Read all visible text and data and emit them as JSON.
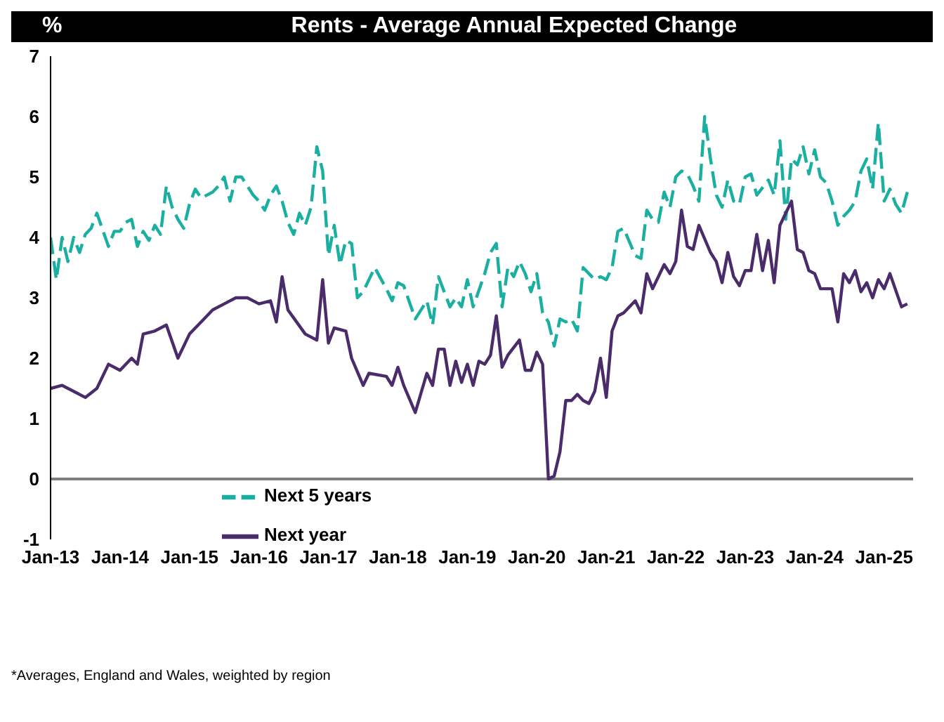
{
  "chart_data": {
    "type": "line",
    "title": "Rents  -  Average Annual Expected Change",
    "ylabel": "%",
    "annotations": [
      "*Averages, England and Wales, weighted by region"
    ],
    "xlim": [
      "2013-01",
      "2025-06"
    ],
    "xticks": [
      {
        "value": "2013-01",
        "label": "Jan-13"
      },
      {
        "value": "2014-01",
        "label": "Jan-14"
      },
      {
        "value": "2015-01",
        "label": "Jan-15"
      },
      {
        "value": "2016-01",
        "label": "Jan-16"
      },
      {
        "value": "2017-01",
        "label": "Jan-17"
      },
      {
        "value": "2018-01",
        "label": "Jan-18"
      },
      {
        "value": "2019-01",
        "label": "Jan-19"
      },
      {
        "value": "2020-01",
        "label": "Jan-20"
      },
      {
        "value": "2021-01",
        "label": "Jan-21"
      },
      {
        "value": "2022-01",
        "label": "Jan-22"
      },
      {
        "value": "2023-01",
        "label": "Jan-23"
      },
      {
        "value": "2024-01",
        "label": "Jan-24"
      },
      {
        "value": "2025-01",
        "label": "Jan-25"
      }
    ],
    "ylim": [
      -1,
      7
    ],
    "yticks": [
      -1,
      0,
      1,
      2,
      3,
      4,
      5,
      6,
      7
    ],
    "ref_lines": [
      {
        "axis": "y",
        "value": 0,
        "color": "#7f7f7f"
      }
    ],
    "grid": false,
    "legend": "bottom left",
    "marker": "none",
    "series": [
      {
        "name": "Next 5 years",
        "color": "#1aafa0",
        "line_style": "dashed",
        "x": [
          "2013-01",
          "2013-02",
          "2013-03",
          "2013-04",
          "2013-05",
          "2013-06",
          "2013-07",
          "2013-08",
          "2013-09",
          "2013-11",
          "2013-12",
          "2014-01",
          "2014-02",
          "2014-03",
          "2014-04",
          "2014-05",
          "2014-06",
          "2014-07",
          "2014-08",
          "2014-09",
          "2014-10",
          "2014-11",
          "2014-12",
          "2015-01",
          "2015-02",
          "2015-03",
          "2015-05",
          "2015-06",
          "2015-07",
          "2015-08",
          "2015-09",
          "2015-10",
          "2015-12",
          "2016-01",
          "2016-02",
          "2016-03",
          "2016-04",
          "2016-05",
          "2016-06",
          "2016-07",
          "2016-08",
          "2016-09",
          "2016-10",
          "2016-11",
          "2016-12",
          "2017-01",
          "2017-02",
          "2017-03",
          "2017-04",
          "2017-05",
          "2017-06",
          "2017-07",
          "2017-09",
          "2017-11",
          "2017-12",
          "2018-01",
          "2018-02",
          "2018-04",
          "2018-06",
          "2018-07",
          "2018-08",
          "2018-09",
          "2018-10",
          "2018-11",
          "2018-12",
          "2019-01",
          "2019-02",
          "2019-04",
          "2019-05",
          "2019-06",
          "2019-07",
          "2019-08",
          "2019-09",
          "2019-10",
          "2019-11",
          "2019-12",
          "2020-01",
          "2020-02",
          "2020-03",
          "2020-04",
          "2020-05",
          "2020-06",
          "2020-07",
          "2020-08",
          "2020-09",
          "2020-11",
          "2020-12",
          "2021-01",
          "2021-02",
          "2021-03",
          "2021-04",
          "2021-06",
          "2021-07",
          "2021-08",
          "2021-09",
          "2021-10",
          "2021-11",
          "2021-12",
          "2022-01",
          "2022-02",
          "2022-03",
          "2022-04",
          "2022-05",
          "2022-06",
          "2022-07",
          "2022-08",
          "2022-09",
          "2022-10",
          "2022-11",
          "2022-12",
          "2023-01",
          "2023-02",
          "2023-03",
          "2023-05",
          "2023-06",
          "2023-07",
          "2023-08",
          "2023-09",
          "2023-10",
          "2023-11",
          "2023-12",
          "2024-01",
          "2024-02",
          "2024-03",
          "2024-04",
          "2024-05",
          "2024-06",
          "2024-07",
          "2024-08",
          "2024-09",
          "2024-10",
          "2024-11",
          "2024-12",
          "2025-01",
          "2025-02",
          "2025-03",
          "2025-04",
          "2025-05"
        ],
        "values": [
          4.0,
          3.3,
          4.0,
          3.6,
          4.0,
          3.75,
          4.05,
          4.15,
          4.4,
          3.85,
          4.1,
          4.1,
          4.25,
          4.3,
          3.85,
          4.1,
          3.95,
          4.2,
          4.05,
          4.85,
          4.5,
          4.3,
          4.15,
          4.55,
          4.8,
          4.65,
          4.75,
          4.85,
          5.0,
          4.6,
          5.0,
          5.0,
          4.7,
          4.6,
          4.45,
          4.7,
          4.85,
          4.6,
          4.25,
          4.05,
          4.4,
          4.2,
          4.5,
          5.5,
          5.1,
          3.7,
          4.2,
          3.55,
          3.95,
          3.9,
          3.0,
          3.1,
          3.5,
          3.15,
          2.95,
          3.25,
          3.2,
          2.65,
          2.95,
          2.55,
          3.35,
          3.1,
          2.85,
          3.0,
          2.85,
          3.3,
          2.85,
          3.4,
          3.75,
          3.9,
          2.85,
          3.5,
          3.35,
          3.6,
          3.4,
          3.1,
          3.4,
          2.75,
          2.6,
          2.2,
          2.65,
          2.6,
          2.65,
          2.45,
          3.5,
          3.3,
          3.35,
          3.3,
          3.5,
          4.1,
          4.15,
          3.7,
          3.65,
          4.45,
          4.3,
          4.25,
          4.75,
          4.5,
          5.0,
          5.1,
          5.05,
          4.85,
          4.6,
          6.0,
          5.3,
          4.7,
          4.5,
          4.95,
          4.6,
          4.55,
          5.0,
          5.05,
          4.7,
          4.95,
          4.7,
          5.6,
          4.3,
          5.3,
          5.2,
          5.5,
          5.05,
          5.45,
          5.0,
          4.9,
          4.6,
          4.2,
          4.35,
          4.45,
          4.6,
          5.1,
          5.3,
          4.8,
          5.9,
          4.6,
          4.8,
          4.55,
          4.4,
          4.75
        ]
      },
      {
        "name": "Next year",
        "color": "#4b2c6b",
        "line_style": "solid",
        "x": [
          "2013-01",
          "2013-03",
          "2013-05",
          "2013-07",
          "2013-09",
          "2013-11",
          "2014-01",
          "2014-03",
          "2014-04",
          "2014-05",
          "2014-07",
          "2014-09",
          "2014-11",
          "2015-01",
          "2015-03",
          "2015-05",
          "2015-07",
          "2015-09",
          "2015-11",
          "2016-01",
          "2016-03",
          "2016-04",
          "2016-05",
          "2016-06",
          "2016-09",
          "2016-11",
          "2016-12",
          "2017-01",
          "2017-02",
          "2017-04",
          "2017-05",
          "2017-07",
          "2017-08",
          "2017-11",
          "2017-12",
          "2018-01",
          "2018-02",
          "2018-04",
          "2018-06",
          "2018-07",
          "2018-08",
          "2018-09",
          "2018-10",
          "2018-11",
          "2018-12",
          "2019-01",
          "2019-02",
          "2019-03",
          "2019-04",
          "2019-05",
          "2019-06",
          "2019-07",
          "2019-08",
          "2019-10",
          "2019-11",
          "2019-12",
          "2020-01",
          "2020-02",
          "2020-03",
          "2020-04",
          "2020-05",
          "2020-06",
          "2020-07",
          "2020-08",
          "2020-09",
          "2020-10",
          "2020-11",
          "2020-12",
          "2021-01",
          "2021-02",
          "2021-03",
          "2021-04",
          "2021-06",
          "2021-07",
          "2021-08",
          "2021-09",
          "2021-11",
          "2021-12",
          "2022-01",
          "2022-02",
          "2022-03",
          "2022-04",
          "2022-05",
          "2022-07",
          "2022-08",
          "2022-09",
          "2022-10",
          "2022-11",
          "2022-12",
          "2023-01",
          "2023-02",
          "2023-03",
          "2023-04",
          "2023-05",
          "2023-06",
          "2023-07",
          "2023-09",
          "2023-10",
          "2023-11",
          "2023-12",
          "2024-01",
          "2024-02",
          "2024-04",
          "2024-05",
          "2024-06",
          "2024-07",
          "2024-08",
          "2024-09",
          "2024-10",
          "2024-11",
          "2024-12",
          "2025-01",
          "2025-02",
          "2025-04",
          "2025-05"
        ],
        "values": [
          1.5,
          1.55,
          1.45,
          1.35,
          1.5,
          1.9,
          1.8,
          2.0,
          1.9,
          2.4,
          2.45,
          2.55,
          2.0,
          2.4,
          2.6,
          2.8,
          2.9,
          3.0,
          3.0,
          2.9,
          2.95,
          2.6,
          3.35,
          2.8,
          2.4,
          2.3,
          3.3,
          2.25,
          2.5,
          2.45,
          2.0,
          1.55,
          1.75,
          1.7,
          1.55,
          1.85,
          1.55,
          1.1,
          1.75,
          1.55,
          2.15,
          2.15,
          1.55,
          1.95,
          1.6,
          1.9,
          1.55,
          1.95,
          1.9,
          2.05,
          2.7,
          1.85,
          2.05,
          2.3,
          1.8,
          1.8,
          2.1,
          1.9,
          0.0,
          0.05,
          0.45,
          1.3,
          1.3,
          1.4,
          1.3,
          1.25,
          1.45,
          2.0,
          1.35,
          2.45,
          2.7,
          2.75,
          2.95,
          2.75,
          3.4,
          3.15,
          3.55,
          3.4,
          3.6,
          4.45,
          3.85,
          3.8,
          4.2,
          3.75,
          3.6,
          3.25,
          3.75,
          3.35,
          3.2,
          3.45,
          3.45,
          4.05,
          3.45,
          3.95,
          3.25,
          4.2,
          4.6,
          3.8,
          3.75,
          3.45,
          3.4,
          3.15,
          3.15,
          2.6,
          3.4,
          3.25,
          3.45,
          3.1,
          3.25,
          3.0,
          3.3,
          3.15,
          3.4,
          2.85,
          2.9
        ]
      }
    ]
  }
}
